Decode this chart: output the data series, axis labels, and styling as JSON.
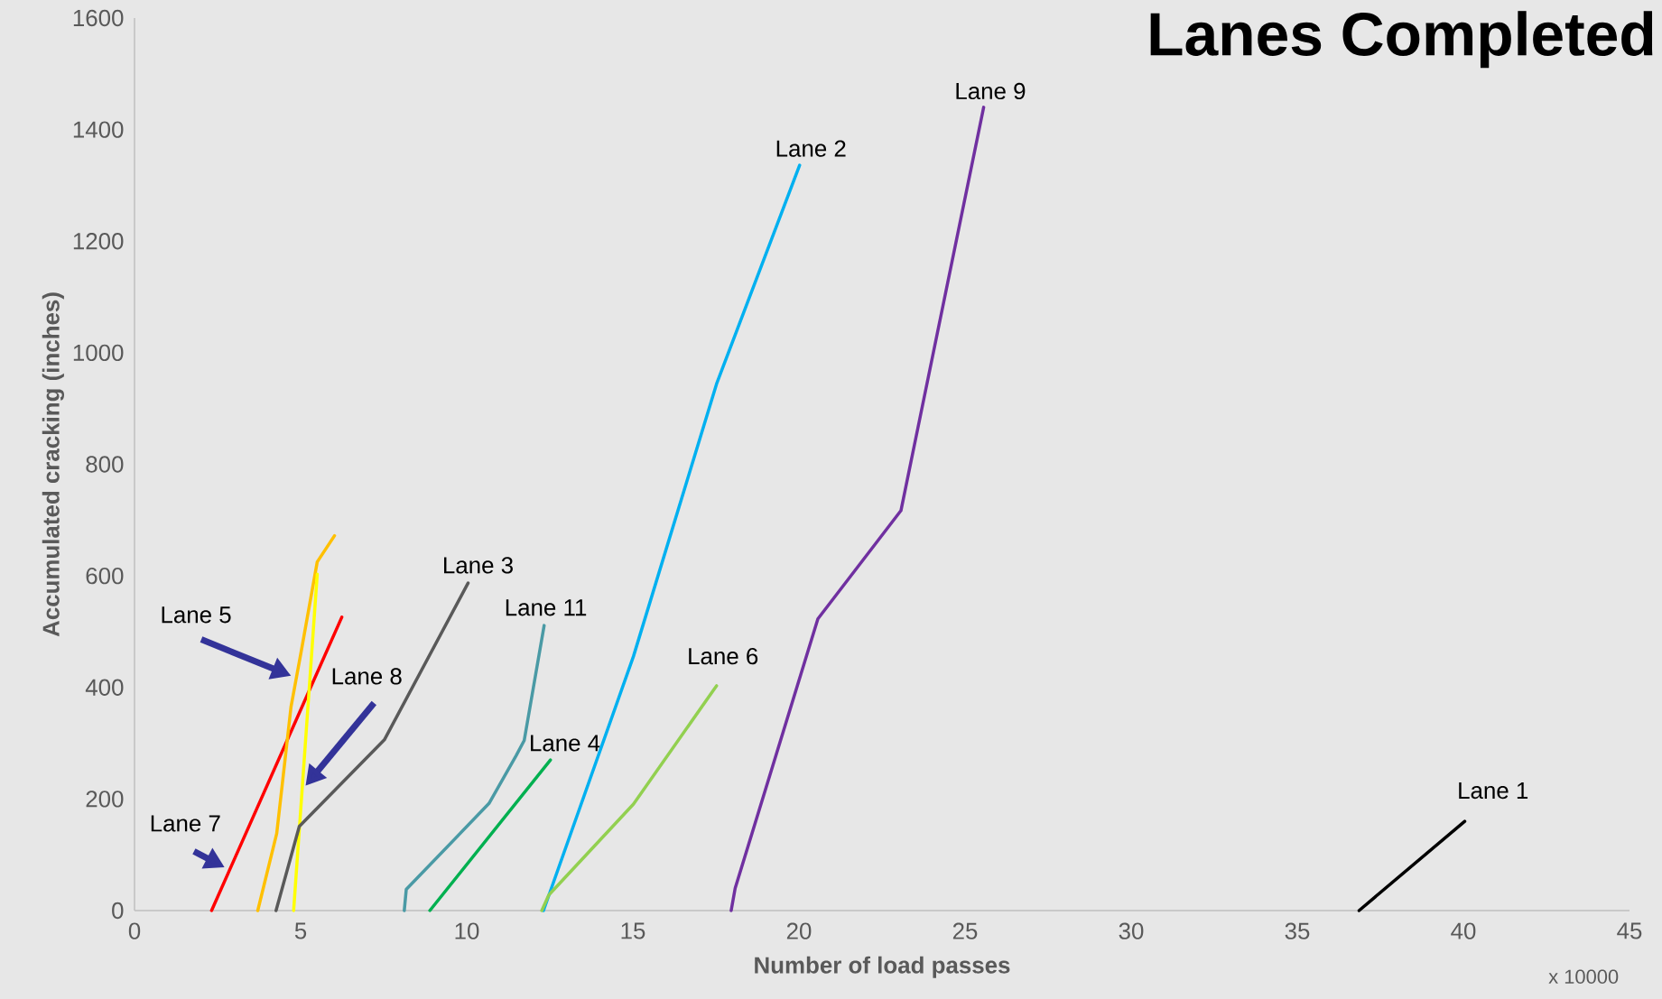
{
  "chart_data": {
    "type": "line",
    "title": "Lanes Completed",
    "xlabel": "Number of load passes",
    "ylabel": "Accumulated cracking (inches)",
    "annotations": [
      "x 10000",
      {
        "text": "Lane 7",
        "x": 2.86,
        "y": 73
      },
      "Lane 5",
      "Lane 8"
    ],
    "xlim": [
      0,
      45
    ],
    "xticks": [
      0,
      5,
      10,
      15,
      20,
      25,
      30,
      35,
      40,
      45
    ],
    "ylim": [
      0,
      1600
    ],
    "yticks": [
      0,
      200,
      400,
      600,
      800,
      1000,
      1200,
      1400,
      1600
    ],
    "grid": false,
    "legend": false,
    "marker": "none",
    "line_style": "solid",
    "series": [
      {
        "color": "#ff0000",
        "x": [
          2.32,
          6.24
        ],
        "values": [
          0,
          526
        ]
      },
      {
        "color": "#ffc000",
        "x": [
          3.71,
          4.28,
          4.71,
          5.01,
          5.5,
          6.02
        ],
        "values": [
          0,
          138,
          365,
          462,
          625,
          672
        ]
      },
      {
        "color": "#ffff00",
        "x": [
          4.79,
          5.5
        ],
        "values": [
          0,
          603
        ]
      },
      {
        "name": "Lane 3",
        "color": "#595959",
        "x": [
          4.26,
          4.96,
          7.52,
          10.04
        ],
        "values": [
          0,
          151,
          306,
          587
        ]
      },
      {
        "name": "Lane 11",
        "color": "#4a9aa5",
        "x": [
          8.12,
          8.18,
          10.67,
          11.49,
          11.73,
          12.33
        ],
        "values": [
          0,
          38,
          192,
          278,
          305,
          511
        ]
      },
      {
        "name": "Lane 4",
        "color": "#00b050",
        "x": [
          8.89,
          12.52
        ],
        "values": [
          0,
          270
        ]
      },
      {
        "name": "Lane 2",
        "color": "#00b0f0",
        "x": [
          12.31,
          15.02,
          17.52,
          20.02
        ],
        "values": [
          0,
          456,
          944,
          1336
        ]
      },
      {
        "name": "Lane 6",
        "color": "#92d050",
        "x": [
          12.26,
          12.47,
          15.02,
          17.52
        ],
        "values": [
          0,
          28,
          191,
          403
        ]
      },
      {
        "name": "Lane 9",
        "color": "#7030a0",
        "x": [
          17.96,
          18.08,
          20.57,
          23.07,
          25.56
        ],
        "values": [
          0,
          40,
          523,
          717,
          1440
        ]
      },
      {
        "name": "Lane 1",
        "color": "#000000",
        "x": [
          36.86,
          40.04
        ],
        "values": [
          0,
          160
        ]
      }
    ]
  }
}
